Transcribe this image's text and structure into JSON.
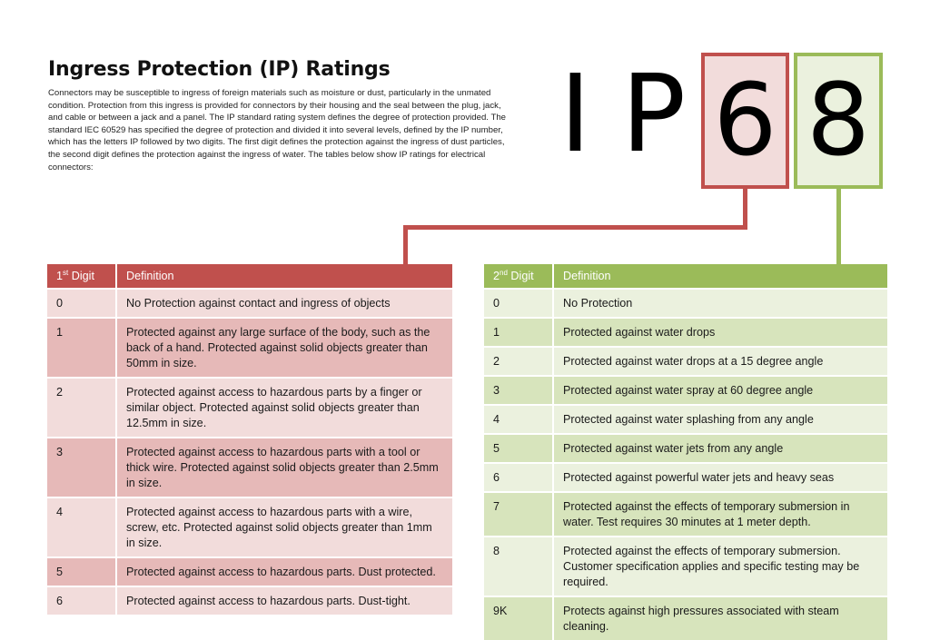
{
  "title": "Ingress Protection (IP) Ratings",
  "intro": "Connectors may be susceptible to ingress of foreign materials such as moisture or dust, particularly in the unmated condition. Protection from this ingress is provided for connectors by their housing and the seal between the plug, jack, and cable or between a jack and a panel. The IP standard rating system defines the degree of protection provided. The standard IEC 60529 has specified the degree of protection and divided it into several levels, defined by the IP number, which has the letters IP followed by two digits. The first digit defines the protection against the ingress of dust particles, the second digit defines the protection against the ingress of water. The tables below show IP ratings for electrical connectors:",
  "code": {
    "letter_i": "I",
    "letter_p": "P",
    "first_digit": "6",
    "second_digit": "8"
  },
  "colors": {
    "first": "#c0504d",
    "second": "#9bbb59"
  },
  "first_table": {
    "header_num": "1",
    "header_sup": "st",
    "header_word": " Digit",
    "header_def": "Definition",
    "rows": [
      {
        "digit": "0",
        "definition": "No Protection against contact and ingress of objects"
      },
      {
        "digit": "1",
        "definition": "Protected against any large surface of the body, such as the back of a hand. Protected against solid objects greater than 50mm in size."
      },
      {
        "digit": "2",
        "definition": "Protected against access to hazardous parts by a finger or similar object. Protected against solid objects greater than 12.5mm in size."
      },
      {
        "digit": "3",
        "definition": "Protected against access to hazardous parts with a tool or thick wire. Protected against solid objects greater than 2.5mm in size."
      },
      {
        "digit": "4",
        "definition": "Protected against access to hazardous parts with a wire, screw, etc. Protected against solid objects greater than 1mm in size."
      },
      {
        "digit": "5",
        "definition": "Protected against access to hazardous parts. Dust protected."
      },
      {
        "digit": "6",
        "definition": "Protected against access to hazardous parts. Dust-tight."
      }
    ]
  },
  "second_table": {
    "header_num": "2",
    "header_sup": "nd",
    "header_word": " Digit",
    "header_def": "Definition",
    "rows": [
      {
        "digit": "0",
        "definition": "No Protection"
      },
      {
        "digit": "1",
        "definition": "Protected against water drops"
      },
      {
        "digit": "2",
        "definition": "Protected against water drops at a 15 degree angle"
      },
      {
        "digit": "3",
        "definition": "Protected against water spray at 60 degree angle"
      },
      {
        "digit": "4",
        "definition": "Protected against water splashing from any angle"
      },
      {
        "digit": "5",
        "definition": "Protected against water jets from any angle"
      },
      {
        "digit": "6",
        "definition": "Protected against powerful water jets and heavy seas"
      },
      {
        "digit": "7",
        "definition": "Protected against the effects of temporary submersion in water. Test requires 30 minutes at 1 meter depth."
      },
      {
        "digit": "8",
        "definition": "Protected against the effects of temporary submersion. Customer specification applies and specific testing may be required."
      },
      {
        "digit": "9K",
        "definition": "Protects against high pressures associated with steam cleaning."
      }
    ]
  }
}
